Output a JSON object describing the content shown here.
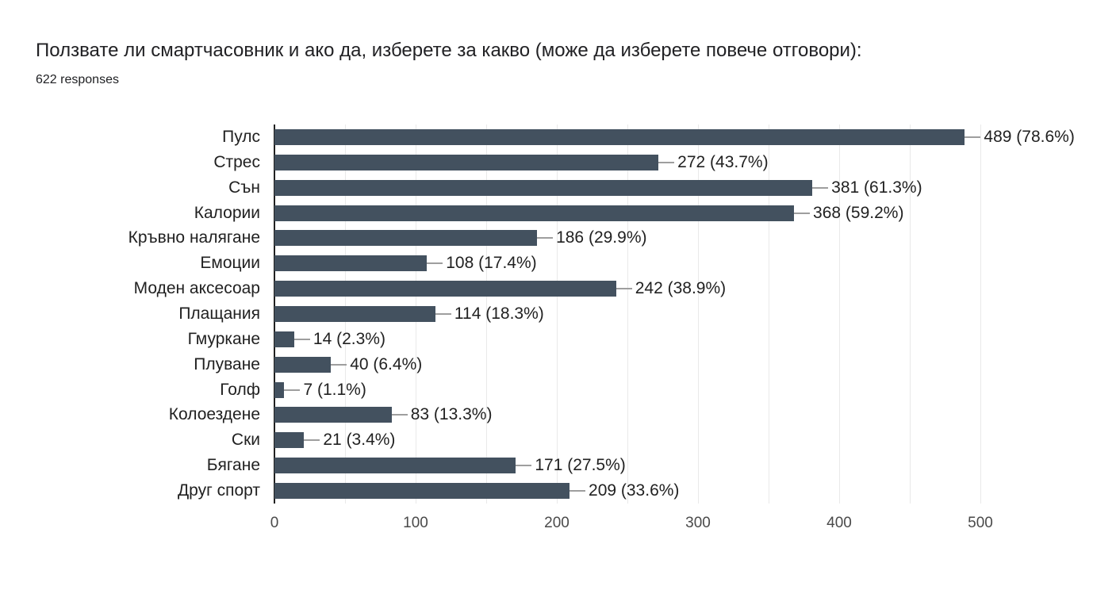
{
  "header": {
    "title": "Ползвате ли смартчасовник и ако да, изберете за какво (може да изберете повече отговори):",
    "responses": "622 responses"
  },
  "chart_data": {
    "type": "bar",
    "orientation": "horizontal",
    "title": "Ползвате ли смартчасовник и ако да, изберете за какво (може да изберете повече отговори):",
    "subtitle": "622 responses",
    "categories": [
      "Пулс",
      "Стрес",
      "Сън",
      "Калории",
      "Кръвно налягане",
      "Емоции",
      "Моден аксесоар",
      "Плащания",
      "Гмуркане",
      "Плуване",
      "Голф",
      "Колоездене",
      "Ски",
      "Бягане",
      "Друг спорт"
    ],
    "values": [
      489,
      272,
      381,
      368,
      186,
      108,
      242,
      114,
      14,
      40,
      7,
      83,
      21,
      171,
      209
    ],
    "value_labels": [
      "489 (78.6%)",
      "272 (43.7%)",
      "381 (61.3%)",
      "368 (59.2%)",
      "186 (29.9%)",
      "108 (17.4%)",
      "242 (38.9%)",
      "114 (18.3%)",
      "14 (2.3%)",
      "40 (6.4%)",
      "7 (1.1%)",
      "83 (13.3%)",
      "21 (3.4%)",
      "171 (27.5%)",
      "209 (33.6%)"
    ],
    "xlim": [
      0,
      500
    ],
    "xticks": [
      0,
      100,
      200,
      300,
      400,
      500
    ],
    "gridline_interval": 50,
    "grid": true,
    "legend": "none",
    "colors": {
      "bar": "#43515F",
      "gridline": "#e9e9e9",
      "axis_line": "#212121",
      "callout": "#9e9e9e",
      "label_text": "#212121",
      "tick_text": "#4a4a4a",
      "background": "#ffffff"
    }
  }
}
